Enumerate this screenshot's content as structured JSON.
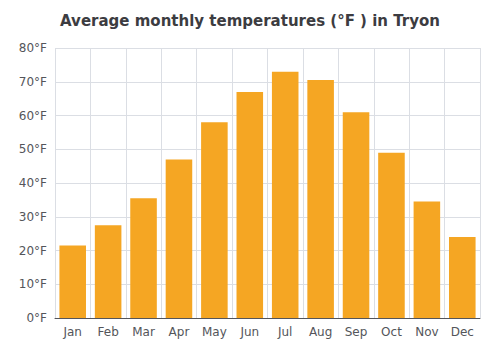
{
  "chart_data": {
    "type": "bar",
    "title": "Average monthly temperatures (°F ) in Tryon",
    "categories": [
      "Jan",
      "Feb",
      "Mar",
      "Apr",
      "May",
      "Jun",
      "Jul",
      "Aug",
      "Sep",
      "Oct",
      "Nov",
      "Dec"
    ],
    "values": [
      21.5,
      27.5,
      35.5,
      47,
      58,
      67,
      73,
      70.5,
      61,
      49,
      34.5,
      24
    ],
    "color": "#F5A623",
    "ylim": [
      0,
      80
    ],
    "yticks": [
      {
        "value": 0,
        "label": "0°F"
      },
      {
        "value": 10,
        "label": "10°F"
      },
      {
        "value": 20,
        "label": "20°F"
      },
      {
        "value": 30,
        "label": "30°F"
      },
      {
        "value": 40,
        "label": "40°F"
      },
      {
        "value": 50,
        "label": "50°F"
      },
      {
        "value": 60,
        "label": "60°F"
      },
      {
        "value": 70,
        "label": "70°F"
      },
      {
        "value": 80,
        "label": "80°F"
      }
    ],
    "grid": true
  }
}
